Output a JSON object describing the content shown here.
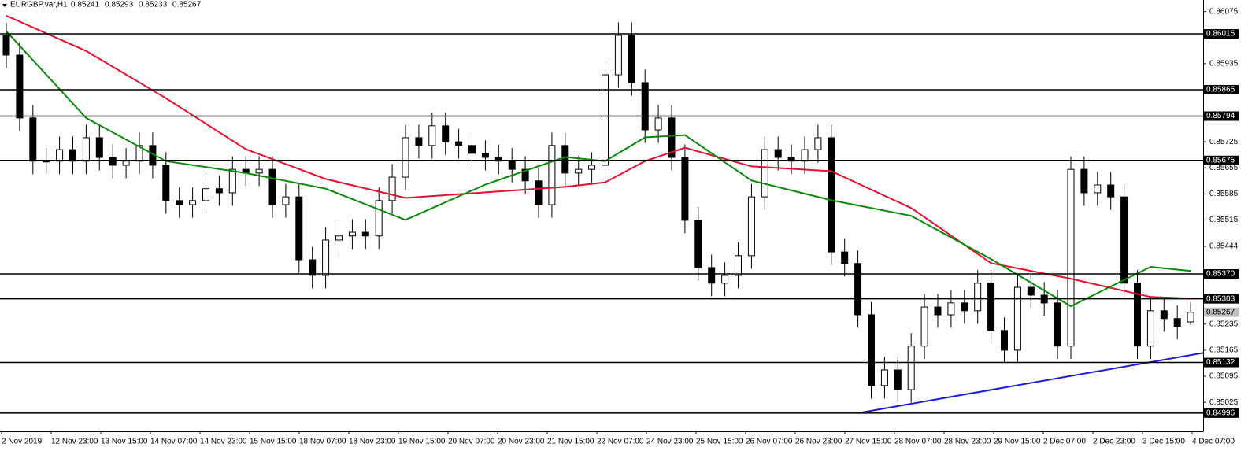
{
  "chart_data": {
    "type": "candlestick",
    "symbol": "EURGBP.var,H1",
    "ylim": [
      0.84947,
      0.86106
    ],
    "yticks": [
      0.86075,
      0.85935,
      0.85725,
      0.85655,
      0.85585,
      0.85515,
      0.85444,
      0.85235,
      0.85165,
      0.85095,
      0.85025
    ],
    "x_labels": [
      "2 Nov 2019",
      "12 Nov 23:00",
      "13 Nov 15:00",
      "14 Nov 07:00",
      "14 Nov 23:00",
      "15 Nov 15:00",
      "18 Nov 07:00",
      "18 Nov 23:00",
      "19 Nov 15:00",
      "20 Nov 07:00",
      "20 Nov 23:00",
      "21 Nov 15:00",
      "22 Nov 07:00",
      "24 Nov 23:00",
      "25 Nov 15:00",
      "26 Nov 07:00",
      "26 Nov 23:00",
      "27 Nov 15:00",
      "28 Nov 07:00",
      "28 Nov 23:00",
      "29 Nov 15:00",
      "2 Dec 07:00",
      "2 Dec 23:00",
      "3 Dec 15:00",
      "4 Dec 07:00"
    ],
    "candles": {
      "open": [
        0.8601,
        0.85958,
        0.85789,
        0.85673,
        0.85673,
        0.85704,
        0.85673,
        0.85736,
        0.85683,
        0.85662,
        0.85673,
        0.85715,
        0.85662,
        0.85567,
        0.85556,
        0.85567,
        0.85599,
        0.85588,
        0.85651,
        0.85641,
        0.85651,
        0.85556,
        0.85577,
        0.85408,
        0.85366,
        0.85461,
        0.85472,
        0.85482,
        0.85472,
        0.85567,
        0.8563,
        0.85736,
        0.85715,
        0.85768,
        0.85725,
        0.85715,
        0.85694,
        0.85683,
        0.85673,
        0.85651,
        0.8562,
        0.85556,
        0.85715,
        0.85641,
        0.85651,
        0.85662,
        0.85905,
        0.86011,
        0.85884,
        0.85757,
        0.85789,
        0.85683,
        0.85514,
        0.85387,
        0.85345,
        0.85366,
        0.85419,
        0.85577,
        0.85704,
        0.85683,
        0.85673,
        0.85704,
        0.85736,
        0.85429,
        0.85398,
        0.8526,
        0.8507,
        0.85112,
        0.85059,
        0.85176,
        0.85281,
        0.8526,
        0.85292,
        0.85271,
        0.85345,
        0.85218,
        0.85165,
        0.85334,
        0.85313,
        0.85292,
        0.85176,
        0.85651,
        0.85588,
        0.85609,
        0.85577,
        0.85345,
        0.85176,
        0.85271,
        0.8525,
        0.85241
      ],
      "high": [
        0.86045,
        0.85993,
        0.85824,
        0.85708,
        0.85739,
        0.85739,
        0.85771,
        0.85771,
        0.85718,
        0.85708,
        0.8575,
        0.8575,
        0.85697,
        0.85602,
        0.85602,
        0.85634,
        0.85634,
        0.85686,
        0.85686,
        0.85686,
        0.85686,
        0.85612,
        0.85612,
        0.85443,
        0.85496,
        0.85507,
        0.85517,
        0.85517,
        0.85602,
        0.85665,
        0.85771,
        0.85771,
        0.85803,
        0.85803,
        0.8576,
        0.8575,
        0.85729,
        0.85718,
        0.85708,
        0.85686,
        0.85655,
        0.8575,
        0.8575,
        0.85686,
        0.85697,
        0.8594,
        0.86046,
        0.86046,
        0.85919,
        0.85824,
        0.85824,
        0.85718,
        0.85549,
        0.85422,
        0.85401,
        0.85454,
        0.85612,
        0.85739,
        0.85739,
        0.85718,
        0.85739,
        0.85771,
        0.85771,
        0.85464,
        0.85433,
        0.85295,
        0.85147,
        0.85147,
        0.85211,
        0.85316,
        0.85316,
        0.85327,
        0.85327,
        0.8538,
        0.8538,
        0.85253,
        0.85369,
        0.85369,
        0.85348,
        0.85327,
        0.85686,
        0.85686,
        0.85644,
        0.85644,
        0.85612,
        0.8538,
        0.85306,
        0.85306,
        0.85285,
        0.85293
      ],
      "low": [
        0.85923,
        0.85754,
        0.85638,
        0.85638,
        0.85638,
        0.85638,
        0.85638,
        0.85648,
        0.85627,
        0.85627,
        0.85638,
        0.85627,
        0.85532,
        0.85521,
        0.85521,
        0.85532,
        0.85553,
        0.85553,
        0.85606,
        0.85606,
        0.85521,
        0.85521,
        0.85373,
        0.85331,
        0.85331,
        0.85426,
        0.85437,
        0.85437,
        0.85437,
        0.85532,
        0.85595,
        0.8568,
        0.8568,
        0.8569,
        0.8568,
        0.85659,
        0.85648,
        0.85638,
        0.85616,
        0.85585,
        0.85521,
        0.85521,
        0.85606,
        0.85606,
        0.85616,
        0.85627,
        0.8587,
        0.85849,
        0.85722,
        0.85722,
        0.85648,
        0.85479,
        0.85352,
        0.8531,
        0.8531,
        0.85331,
        0.85384,
        0.85542,
        0.85648,
        0.85638,
        0.85638,
        0.85669,
        0.85394,
        0.85363,
        0.85225,
        0.85035,
        0.85035,
        0.85024,
        0.85024,
        0.85141,
        0.85225,
        0.85225,
        0.85236,
        0.85236,
        0.85183,
        0.8513,
        0.8513,
        0.85278,
        0.85257,
        0.85141,
        0.85141,
        0.85553,
        0.85553,
        0.85542,
        0.8531,
        0.85141,
        0.85141,
        0.85215,
        0.85194,
        0.85233
      ],
      "close": [
        0.85958,
        0.85789,
        0.85673,
        0.85673,
        0.85704,
        0.85673,
        0.85736,
        0.85683,
        0.85662,
        0.85673,
        0.85715,
        0.85662,
        0.85567,
        0.85556,
        0.85567,
        0.85599,
        0.85588,
        0.85651,
        0.85641,
        0.85651,
        0.85556,
        0.85577,
        0.85408,
        0.85366,
        0.85461,
        0.85472,
        0.85482,
        0.85472,
        0.85567,
        0.8563,
        0.85736,
        0.85715,
        0.85768,
        0.85725,
        0.85715,
        0.85694,
        0.85683,
        0.85673,
        0.85651,
        0.8562,
        0.85556,
        0.85715,
        0.85641,
        0.85651,
        0.85662,
        0.85905,
        0.86011,
        0.85884,
        0.85757,
        0.85789,
        0.85683,
        0.85514,
        0.85387,
        0.85345,
        0.85366,
        0.85419,
        0.85577,
        0.85704,
        0.85683,
        0.85673,
        0.85704,
        0.85736,
        0.85429,
        0.85398,
        0.8526,
        0.8507,
        0.85112,
        0.85059,
        0.85176,
        0.85281,
        0.8526,
        0.85292,
        0.85271,
        0.85345,
        0.85218,
        0.85165,
        0.85334,
        0.85313,
        0.85292,
        0.85176,
        0.85651,
        0.85588,
        0.85609,
        0.85577,
        0.85345,
        0.85176,
        0.85271,
        0.8525,
        0.85229,
        0.85267
      ]
    },
    "lines": [
      {
        "color": "#e8102e",
        "x": [
          0,
          6,
          12,
          18,
          24,
          30,
          36,
          42,
          45,
          48,
          51,
          56,
          62,
          68,
          74,
          80,
          86,
          89
        ],
        "values": [
          0.86064,
          0.85969,
          0.85842,
          0.85705,
          0.85625,
          0.85574,
          0.85589,
          0.85604,
          0.85616,
          0.85673,
          0.85709,
          0.85659,
          0.85646,
          0.85547,
          0.85399,
          0.85357,
          0.85308,
          0.85304
        ]
      },
      {
        "color": "#0a8a0a",
        "x": [
          0,
          6,
          12,
          18,
          24,
          30,
          36,
          42,
          45,
          48,
          51,
          56,
          62,
          68,
          74,
          80,
          86,
          89
        ],
        "values": [
          0.86022,
          0.85789,
          0.85673,
          0.85641,
          0.85599,
          0.85515,
          0.8561,
          0.85684,
          0.85673,
          0.85737,
          0.85743,
          0.85621,
          0.85568,
          0.85526,
          0.8541,
          0.85283,
          0.85389,
          0.85378
        ]
      },
      {
        "color": "#1a1adc",
        "x": [
          64,
          90
        ],
        "values": [
          0.84996,
          0.85158
        ]
      }
    ],
    "levels": [
      0.86015,
      0.85865,
      0.85794,
      0.85675,
      {
        "value": 0.8537,
        "label": "0.85370"
      },
      0.85303,
      0.85132,
      0.84996
    ]
  }
}
